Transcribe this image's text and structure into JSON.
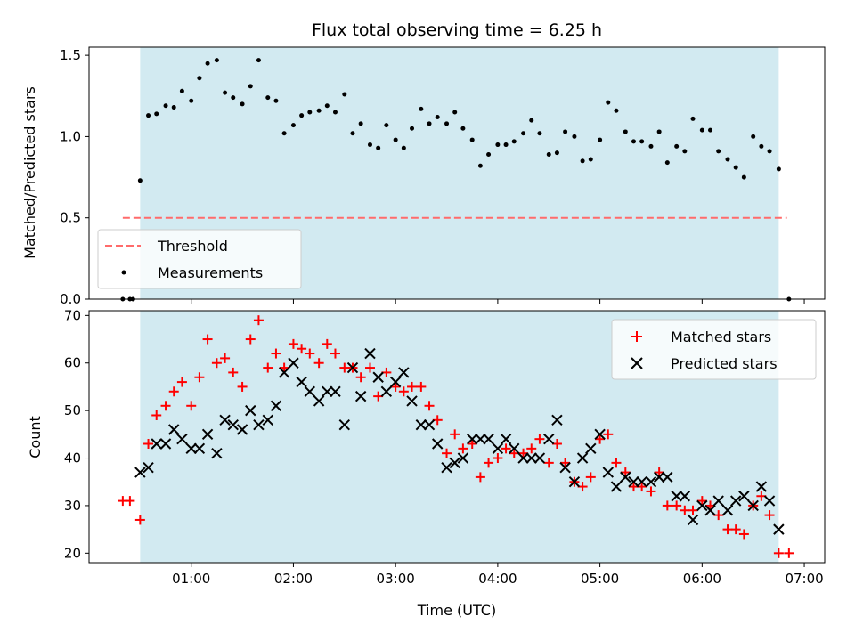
{
  "chart_data": {
    "title": "Flux total observing time = 6.25 h",
    "x_axis": {
      "label": "Time (UTC)",
      "unit": "hours since 00:00 UTC",
      "range": [
        0.0,
        7.2
      ],
      "ticks": [
        1,
        2,
        3,
        4,
        5,
        6,
        7
      ],
      "tick_labels": [
        "01:00",
        "02:00",
        "03:00",
        "04:00",
        "05:00",
        "06:00",
        "07:00"
      ]
    },
    "highlight_span": [
      0.5,
      6.75
    ],
    "highlight_color": "#add8e6",
    "top": {
      "type": "scatter",
      "ylabel": "Matched/Predicted stars",
      "ylim": [
        0,
        1.55
      ],
      "yticks": [
        0.0,
        0.5,
        1.0,
        1.5
      ],
      "ytick_labels": [
        "0.0",
        "0.5",
        "1.0",
        "1.5"
      ],
      "legend_position": "lower-left",
      "threshold": {
        "name": "Threshold",
        "y": 0.5,
        "x_range": [
          0.33,
          6.83
        ],
        "color": "#ff6b6b",
        "style": "dashed"
      },
      "series": [
        {
          "name": "Measurements",
          "color": "#000000",
          "x": [
            0.33,
            0.4,
            0.43,
            0.5,
            0.58,
            0.66,
            0.75,
            0.83,
            0.91,
            1.0,
            1.08,
            1.16,
            1.25,
            1.33,
            1.41,
            1.5,
            1.58,
            1.66,
            1.75,
            1.83,
            1.91,
            2.0,
            2.08,
            2.16,
            2.25,
            2.33,
            2.41,
            2.5,
            2.58,
            2.66,
            2.75,
            2.83,
            2.91,
            3.0,
            3.08,
            3.16,
            3.25,
            3.33,
            3.41,
            3.5,
            3.58,
            3.66,
            3.75,
            3.83,
            3.91,
            4.0,
            4.08,
            4.16,
            4.25,
            4.33,
            4.41,
            4.5,
            4.58,
            4.66,
            4.75,
            4.83,
            4.91,
            5.0,
            5.08,
            5.16,
            5.25,
            5.33,
            5.41,
            5.5,
            5.58,
            5.66,
            5.75,
            5.83,
            5.91,
            6.0,
            6.08,
            6.16,
            6.25,
            6.33,
            6.41,
            6.5,
            6.58,
            6.66,
            6.75,
            6.85
          ],
          "y": [
            0.0,
            0.0,
            0.0,
            0.73,
            1.13,
            1.14,
            1.19,
            1.18,
            1.28,
            1.22,
            1.36,
            1.45,
            1.47,
            1.27,
            1.24,
            1.2,
            1.31,
            1.47,
            1.24,
            1.22,
            1.02,
            1.07,
            1.13,
            1.15,
            1.16,
            1.19,
            1.15,
            1.26,
            1.02,
            1.08,
            0.95,
            0.93,
            1.07,
            0.98,
            0.93,
            1.05,
            1.17,
            1.08,
            1.12,
            1.08,
            1.15,
            1.05,
            0.98,
            0.82,
            0.89,
            0.95,
            0.95,
            0.97,
            1.02,
            1.1,
            1.02,
            0.89,
            0.9,
            1.03,
            1.0,
            0.85,
            0.86,
            0.98,
            1.21,
            1.16,
            1.03,
            0.97,
            0.97,
            0.94,
            1.03,
            0.84,
            0.94,
            0.91,
            1.11,
            1.04,
            1.04,
            0.91,
            0.86,
            0.81,
            0.75,
            1.0,
            0.94,
            0.91,
            0.8,
            0.0
          ]
        }
      ]
    },
    "bottom": {
      "type": "scatter",
      "ylabel": "Count",
      "ylim": [
        18,
        71
      ],
      "yticks": [
        20,
        30,
        40,
        50,
        60,
        70
      ],
      "ytick_labels": [
        "20",
        "30",
        "40",
        "50",
        "60",
        "70"
      ],
      "legend_position": "top-right",
      "series": [
        {
          "name": "Matched stars",
          "marker": "+",
          "color": "#ff0000",
          "x": [
            0.33,
            0.4,
            0.5,
            0.58,
            0.66,
            0.75,
            0.83,
            0.91,
            1.0,
            1.08,
            1.16,
            1.25,
            1.33,
            1.41,
            1.5,
            1.58,
            1.66,
            1.75,
            1.83,
            1.91,
            2.0,
            2.08,
            2.16,
            2.25,
            2.33,
            2.41,
            2.5,
            2.58,
            2.66,
            2.75,
            2.83,
            2.91,
            3.0,
            3.08,
            3.16,
            3.25,
            3.33,
            3.41,
            3.5,
            3.58,
            3.66,
            3.75,
            3.83,
            3.91,
            4.0,
            4.08,
            4.16,
            4.25,
            4.33,
            4.41,
            4.5,
            4.58,
            4.66,
            4.75,
            4.83,
            4.91,
            5.0,
            5.08,
            5.16,
            5.25,
            5.33,
            5.41,
            5.5,
            5.58,
            5.66,
            5.75,
            5.83,
            5.91,
            6.0,
            6.08,
            6.16,
            6.25,
            6.33,
            6.41,
            6.5,
            6.58,
            6.66,
            6.75,
            6.85
          ],
          "y": [
            31,
            31,
            27,
            43,
            49,
            51,
            54,
            56,
            51,
            57,
            65,
            60,
            61,
            58,
            55,
            65,
            69,
            59,
            62,
            59,
            64,
            63,
            62,
            60,
            64,
            62,
            59,
            59,
            57,
            59,
            53,
            58,
            55,
            54,
            55,
            55,
            51,
            48,
            41,
            45,
            42,
            43,
            36,
            39,
            40,
            42,
            41,
            41,
            42,
            44,
            39,
            43,
            39,
            35,
            34,
            36,
            44,
            45,
            39,
            37,
            34,
            34,
            33,
            37,
            30,
            30,
            29,
            29,
            31,
            30,
            28,
            25,
            25,
            24,
            30,
            32,
            28,
            20,
            20
          ]
        },
        {
          "name": "Predicted stars",
          "marker": "x",
          "color": "#000000",
          "x": [
            0.5,
            0.58,
            0.66,
            0.75,
            0.83,
            0.91,
            1.0,
            1.08,
            1.16,
            1.25,
            1.33,
            1.41,
            1.5,
            1.58,
            1.66,
            1.75,
            1.83,
            1.91,
            2.0,
            2.08,
            2.16,
            2.25,
            2.33,
            2.41,
            2.5,
            2.58,
            2.66,
            2.75,
            2.83,
            2.91,
            3.0,
            3.08,
            3.16,
            3.25,
            3.33,
            3.41,
            3.5,
            3.58,
            3.66,
            3.75,
            3.83,
            3.91,
            4.0,
            4.08,
            4.16,
            4.25,
            4.33,
            4.41,
            4.5,
            4.58,
            4.66,
            4.75,
            4.83,
            4.91,
            5.0,
            5.08,
            5.16,
            5.25,
            5.33,
            5.41,
            5.5,
            5.58,
            5.66,
            5.75,
            5.83,
            5.91,
            6.0,
            6.08,
            6.16,
            6.25,
            6.33,
            6.41,
            6.5,
            6.58,
            6.66,
            6.75
          ],
          "y": [
            37,
            38,
            43,
            43,
            46,
            44,
            42,
            42,
            45,
            41,
            48,
            47,
            46,
            50,
            47,
            48,
            51,
            58,
            60,
            56,
            54,
            52,
            54,
            54,
            47,
            59,
            53,
            62,
            57,
            54,
            56,
            58,
            52,
            47,
            47,
            43,
            38,
            39,
            40,
            44,
            44,
            44,
            42,
            44,
            42,
            40,
            40,
            40,
            44,
            48,
            38,
            35,
            40,
            42,
            45,
            37,
            34,
            36,
            35,
            35,
            35,
            36,
            36,
            32,
            32,
            27,
            30,
            29,
            31,
            29,
            31,
            32,
            30,
            34,
            31,
            25
          ]
        }
      ]
    }
  }
}
